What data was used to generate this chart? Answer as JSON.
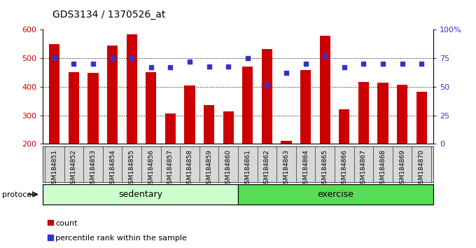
{
  "title": "GDS3134 / 1370526_at",
  "categories": [
    "GSM184851",
    "GSM184852",
    "GSM184853",
    "GSM184854",
    "GSM184855",
    "GSM184856",
    "GSM184857",
    "GSM184858",
    "GSM184859",
    "GSM184860",
    "GSM184861",
    "GSM184862",
    "GSM184863",
    "GSM184864",
    "GSM184865",
    "GSM184866",
    "GSM184867",
    "GSM184868",
    "GSM184869",
    "GSM184870"
  ],
  "bar_values": [
    550,
    452,
    448,
    545,
    585,
    452,
    307,
    405,
    335,
    315,
    472,
    533,
    210,
    458,
    578,
    320,
    418,
    415,
    407,
    383
  ],
  "dot_values": [
    75,
    70,
    70,
    75,
    75,
    67,
    67,
    72,
    68,
    68,
    75,
    52,
    62,
    70,
    77,
    67,
    70,
    70,
    70,
    70
  ],
  "bar_color": "#cc0000",
  "dot_color": "#3333cc",
  "ylim_left": [
    200,
    600
  ],
  "ylim_right": [
    0,
    100
  ],
  "yticks_left": [
    200,
    300,
    400,
    500,
    600
  ],
  "yticks_right": [
    0,
    25,
    50,
    75,
    100
  ],
  "yticklabels_right": [
    "0",
    "25",
    "50",
    "75",
    "100%"
  ],
  "group_sedentary_label": "sedentary",
  "group_exercise_label": "exercise",
  "group_sedentary_color": "#ccffcc",
  "group_exercise_color": "#55dd55",
  "protocol_label": "protocol",
  "legend_bar_label": "count",
  "legend_dot_label": "percentile rank within the sample",
  "xtick_bg_color": "#d8d8d8",
  "fig_bg_color": "#ffffff",
  "plot_bg_color": "#ffffff",
  "title_fontsize": 10,
  "n_sedentary": 10,
  "n_exercise": 10
}
